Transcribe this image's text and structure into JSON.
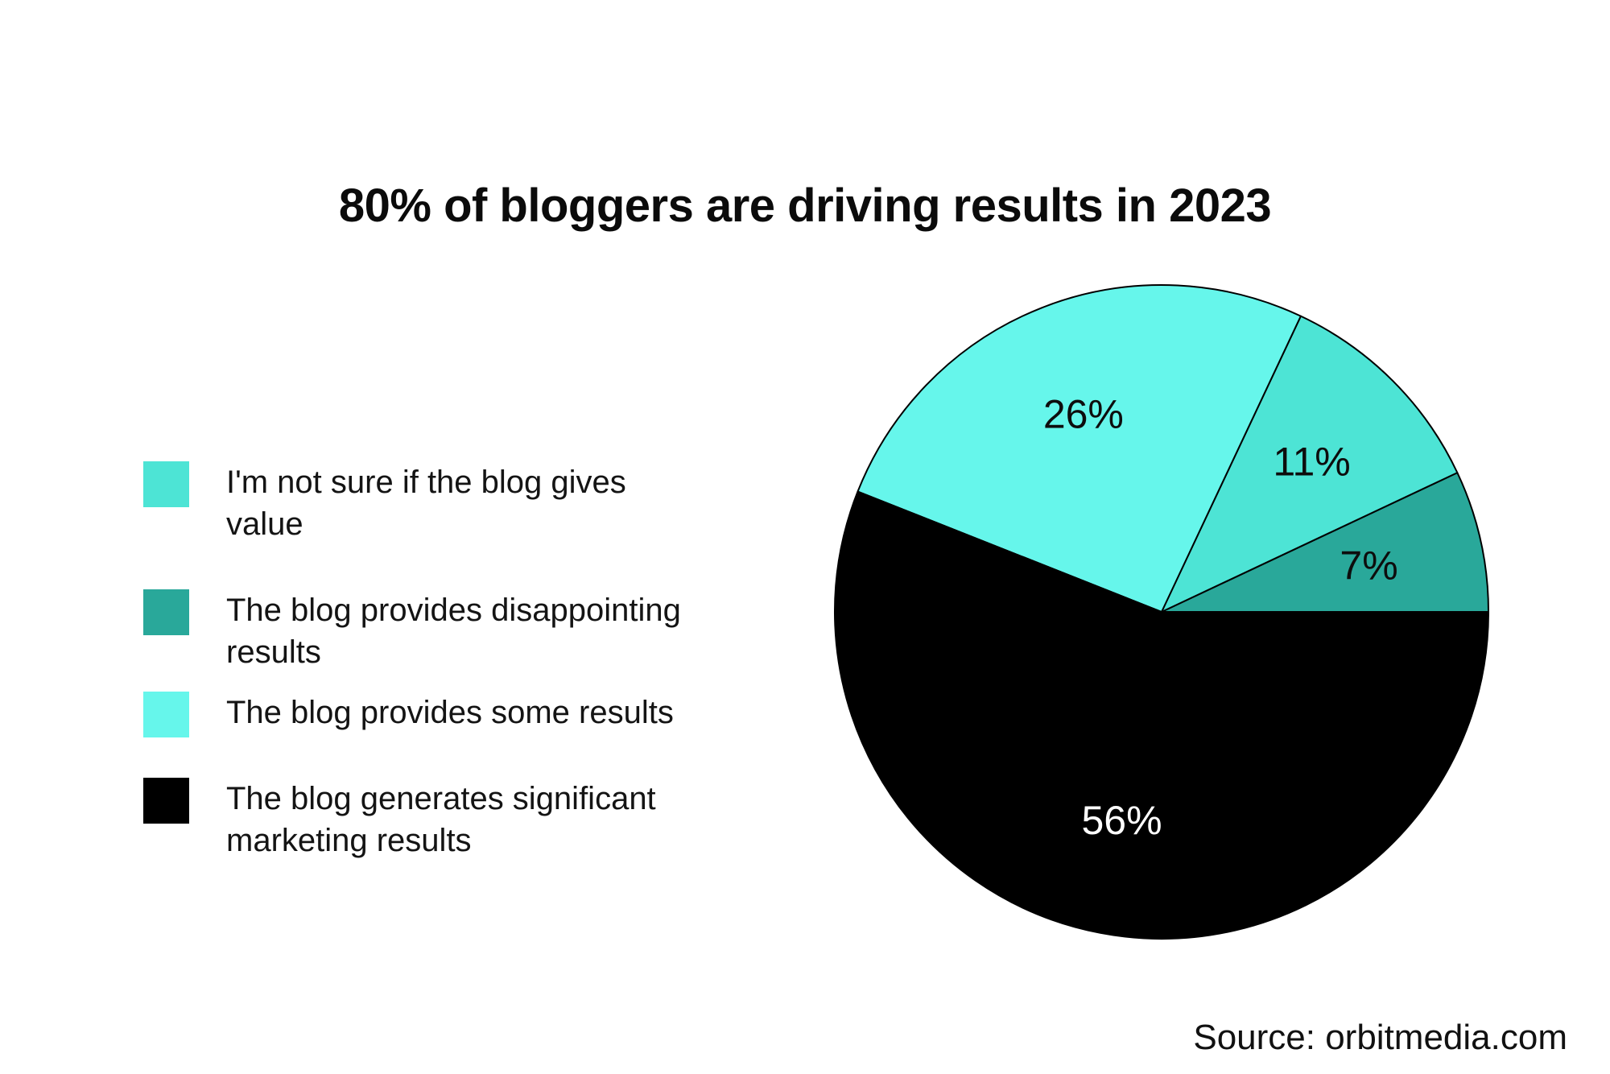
{
  "page": {
    "title": "80% of bloggers are driving results in 2023",
    "source": "Source: orbitmedia.com",
    "background": "#ffffff"
  },
  "colors": {
    "not_sure": "#4de4d5",
    "disappointing": "#29a89a",
    "some_results": "#66f6eb",
    "significant": "#000000",
    "label_dark": "#0d0d0d",
    "label_light": "#ffffff"
  },
  "legend": {
    "position": "left",
    "items": [
      {
        "label": "I'm not sure if the blog gives value",
        "color": "#4de4d5"
      },
      {
        "label": "The blog provides disappointing\nresults",
        "color": "#29a89a"
      },
      {
        "label": "The blog provides some results",
        "color": "#66f6eb"
      },
      {
        "label": "The blog generates significant\nmarketing results",
        "color": "#000000"
      }
    ]
  },
  "chart_data": {
    "type": "pie",
    "title": "80% of bloggers are driving results in 2023",
    "source": "orbitmedia.com",
    "start_angle_deg": 0,
    "direction": "counterclockwise",
    "legend_position": "left",
    "slices": [
      {
        "category": "The blog provides disappointing results",
        "value": 7,
        "display": "7%",
        "color": "#29a89a",
        "text_color": "#0d0d0d"
      },
      {
        "category": "I'm not sure if the blog gives value",
        "value": 11,
        "display": "11%",
        "color": "#4de4d5",
        "text_color": "#0d0d0d"
      },
      {
        "category": "The blog provides some results",
        "value": 26,
        "display": "26%",
        "color": "#66f6eb",
        "text_color": "#0d0d0d"
      },
      {
        "category": "The blog generates significant marketing results",
        "value": 56,
        "display": "56%",
        "color": "#000000",
        "text_color": "#ffffff"
      }
    ]
  }
}
